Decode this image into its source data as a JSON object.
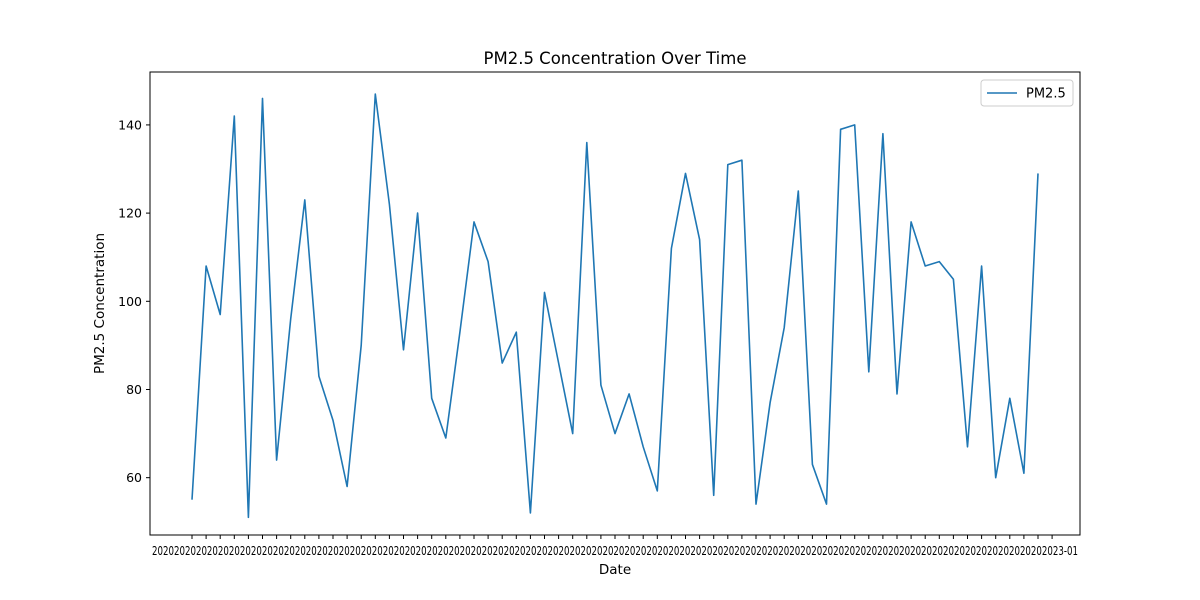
{
  "chart_data": {
    "type": "line",
    "title": "PM2.5 Concentration Over Time",
    "xlabel": "Date",
    "ylabel": "PM2.5 Concentration",
    "ylim": [
      47,
      152
    ],
    "yticks": [
      60,
      80,
      100,
      120,
      140
    ],
    "grid": false,
    "legend": {
      "placement": "top-right",
      "entries": [
        "PM2.5"
      ]
    },
    "x_tick_text": "2020202020202020202020202020202020202020202020202020202020202020202020202020202020202020202020202020202020202020202020202020202020202020202020202020202020202020202023-01",
    "series": [
      {
        "name": "PM2.5",
        "color": "#1f77b4",
        "values": [
          55,
          108,
          97,
          142,
          51,
          146,
          64,
          96,
          123,
          83,
          73,
          58,
          90,
          147,
          122,
          89,
          120,
          78,
          69,
          93,
          118,
          109,
          86,
          93,
          52,
          102,
          86,
          70,
          136,
          81,
          70,
          79,
          67,
          57,
          112,
          129,
          114,
          56,
          131,
          132,
          54,
          77,
          94,
          125,
          63,
          54,
          139,
          140,
          84,
          138,
          79,
          118,
          108,
          109,
          105,
          67,
          108,
          60,
          78,
          61,
          129
        ]
      }
    ]
  }
}
